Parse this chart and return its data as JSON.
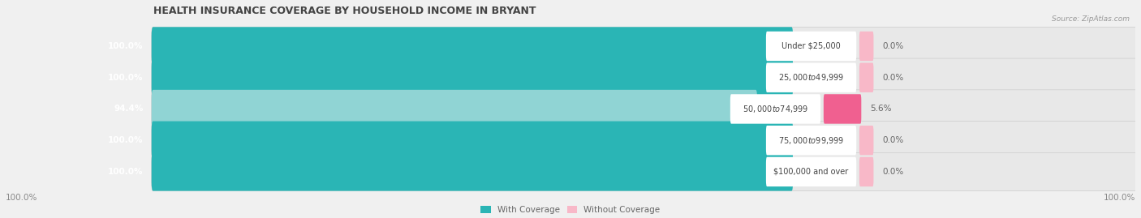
{
  "title": "HEALTH INSURANCE COVERAGE BY HOUSEHOLD INCOME IN BRYANT",
  "source": "Source: ZipAtlas.com",
  "categories": [
    "Under $25,000",
    "$25,000 to $49,999",
    "$50,000 to $74,999",
    "$75,000 to $99,999",
    "$100,000 and over"
  ],
  "with_coverage": [
    100.0,
    100.0,
    94.4,
    100.0,
    100.0
  ],
  "without_coverage": [
    0.0,
    0.0,
    5.6,
    0.0,
    0.0
  ],
  "color_with_full": "#2ab5b5",
  "color_with_light": "#90d4d4",
  "color_without_light": "#f8b8c8",
  "color_without_full": "#f06090",
  "color_bg": "#e0e0e0",
  "color_fig": "#f0f0f0",
  "title_fontsize": 9,
  "label_fontsize": 7.5,
  "source_fontsize": 6.5,
  "figsize": [
    14.06,
    2.69
  ],
  "dpi": 100,
  "left_label": "100.0%",
  "right_label": "100.0%"
}
